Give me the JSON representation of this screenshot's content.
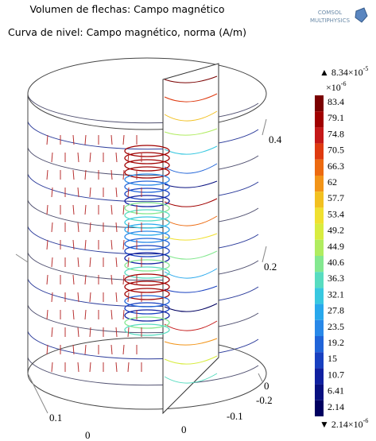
{
  "header": {
    "title_1": "Volumen de flechas: Campo magnético",
    "title_2": "Curva de nivel: Campo magnético, norma (A/m)",
    "logo_1": "COMSOL",
    "logo_2": "MULTIPHYSICS"
  },
  "legend": {
    "max": {
      "marker": "▲",
      "mantissa": "8.34×10",
      "exponent": "-5"
    },
    "scale": {
      "mantissa": "×10",
      "exponent": "-6"
    },
    "labels": [
      "83.4",
      "79.1",
      "74.8",
      "70.5",
      "66.3",
      "62",
      "57.7",
      "53.4",
      "49.2",
      "44.9",
      "40.6",
      "36.3",
      "32.1",
      "27.8",
      "23.5",
      "19.2",
      "15",
      "10.7",
      "6.41",
      "2.14"
    ],
    "colors": [
      "#7a0000",
      "#a00000",
      "#c41818",
      "#de3a10",
      "#ec6a10",
      "#f29418",
      "#f2c020",
      "#f0e030",
      "#d8ec40",
      "#b0ec60",
      "#84e890",
      "#58dcc0",
      "#38c8e0",
      "#28a8ec",
      "#2888e8",
      "#2064d8",
      "#1840c0",
      "#1020a0",
      "#081080",
      "#000060"
    ],
    "min": {
      "marker": "▼",
      "mantissa": "2.14×10",
      "exponent": "-6"
    }
  },
  "axes": {
    "z_1": "0.4",
    "z_2": "0.2",
    "z_3": "0",
    "y_1": "-0.2",
    "y_2": "-0.1",
    "y_3": "0",
    "x_1": "0.1",
    "x_2": "0"
  }
}
